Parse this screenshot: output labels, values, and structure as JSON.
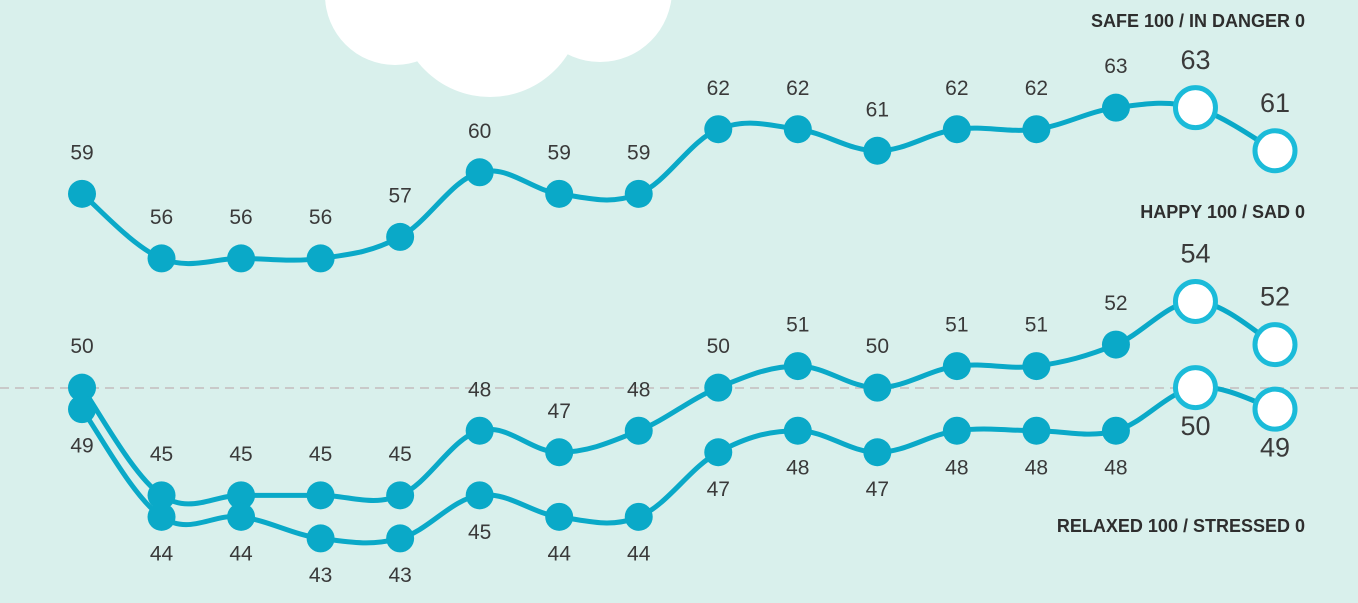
{
  "chart_data": {
    "type": "line",
    "series": [
      {
        "name": "SAFE 100 / IN DANGER 0",
        "color": "#0aa9c8",
        "values": [
          59,
          56,
          56,
          56,
          57,
          60,
          59,
          59,
          62,
          62,
          61,
          62,
          62,
          63,
          63,
          61
        ]
      },
      {
        "name": "HAPPY 100 / SAD 0",
        "color": "#0aa9c8",
        "values": [
          50,
          45,
          45,
          45,
          45,
          48,
          47,
          48,
          50,
          51,
          50,
          51,
          51,
          52,
          54,
          52
        ]
      },
      {
        "name": "RELAXED 100 / STRESSED 0",
        "color": "#0aa9c8",
        "values": [
          49,
          44,
          44,
          43,
          43,
          45,
          44,
          44,
          47,
          48,
          47,
          48,
          48,
          48,
          50,
          49
        ]
      }
    ],
    "ylim": [
      40,
      68
    ]
  }
}
